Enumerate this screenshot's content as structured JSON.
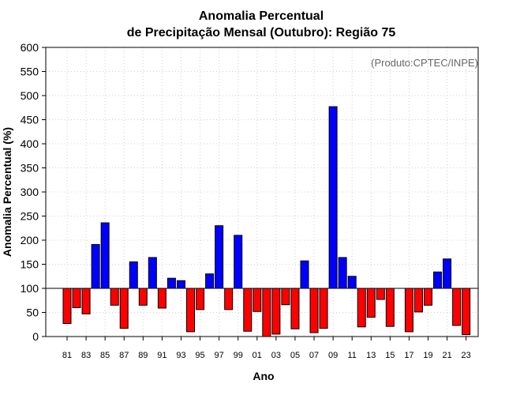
{
  "chart_data": {
    "type": "bar",
    "title_line1": "Anomalia Percentual",
    "title_line2": "de Precipitação Mensal (Outubro): Região 75",
    "xlabel": "Ano",
    "ylabel": "Anomalia Percentual (%)",
    "credit": "(Produto:CPTEC/INPE)",
    "baseline": 100,
    "ylim": [
      0,
      600
    ],
    "yticks": [
      0,
      50,
      100,
      150,
      200,
      250,
      300,
      350,
      400,
      450,
      500,
      550,
      600
    ],
    "grid": true,
    "categories": [
      "81",
      "82",
      "83",
      "84",
      "85",
      "86",
      "87",
      "88",
      "89",
      "90",
      "91",
      "92",
      "93",
      "94",
      "95",
      "96",
      "97",
      "98",
      "99",
      "00",
      "01",
      "02",
      "03",
      "04",
      "05",
      "06",
      "07",
      "08",
      "09",
      "10",
      "11",
      "12",
      "13",
      "14",
      "15",
      "16",
      "17",
      "18",
      "19",
      "20",
      "21",
      "22",
      "23"
    ],
    "tick_labels": [
      "81",
      "83",
      "85",
      "87",
      "89",
      "91",
      "93",
      "95",
      "97",
      "99",
      "01",
      "03",
      "05",
      "07",
      "09",
      "11",
      "13",
      "15",
      "17",
      "19",
      "21",
      "23"
    ],
    "values": [
      27,
      60,
      47,
      191,
      236,
      65,
      17,
      155,
      65,
      164,
      59,
      121,
      116,
      10,
      56,
      130,
      230,
      56,
      210,
      11,
      52,
      0,
      5,
      66,
      16,
      157,
      8,
      17,
      477,
      164,
      125,
      20,
      40,
      77,
      21,
      100,
      10,
      51,
      65,
      134,
      161,
      23,
      4
    ],
    "colors": {
      "above": "#0000ff",
      "below": "#ff0000",
      "baseline": "#000000",
      "grid": "#d0d0d0"
    }
  }
}
